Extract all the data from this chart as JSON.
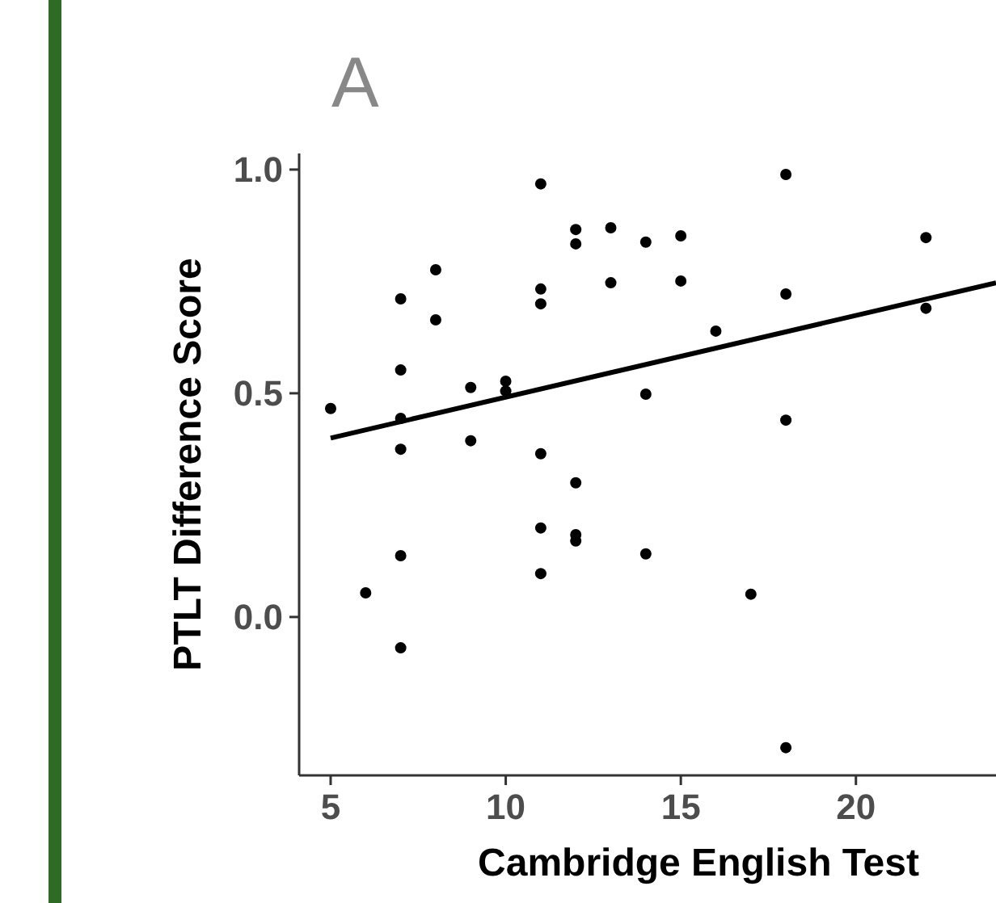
{
  "chart_data": {
    "type": "scatter",
    "title": "A",
    "xlabel": "Cambridge English Test",
    "ylabel": "PTLT Difference Score",
    "xlim": [
      4.1,
      24
    ],
    "xticks": [
      5,
      10,
      15,
      20
    ],
    "ylim": [
      -0.354,
      1.036
    ],
    "yticks": [
      {
        "value": 0,
        "label": "0.0"
      },
      0.5,
      {
        "value": 1,
        "label": "1.0"
      }
    ],
    "grid": false,
    "marker": "circle",
    "series": [
      {
        "color": "#000000",
        "x": [
          5,
          6,
          7,
          7,
          7,
          7,
          7,
          7,
          8,
          8,
          9,
          9,
          10,
          10,
          11,
          11,
          11,
          11,
          11,
          11,
          12,
          12,
          12,
          12,
          12,
          13,
          13,
          14,
          14,
          14,
          15,
          15,
          16,
          17,
          18,
          18,
          18,
          18,
          22,
          22
        ],
        "values": [
          0.466,
          0.054,
          0.711,
          0.552,
          0.444,
          0.375,
          0.137,
          -0.069,
          0.776,
          0.664,
          0.513,
          0.394,
          0.527,
          0.505,
          0.968,
          0.733,
          0.7,
          0.365,
          0.199,
          0.097,
          0.866,
          0.834,
          0.3,
          0.184,
          0.17,
          0.87,
          0.747,
          0.838,
          0.498,
          0.141,
          0.852,
          0.751,
          0.639,
          0.051,
          0.989,
          0.722,
          0.44,
          -0.292,
          0.848,
          0.69
        ]
      },
      {
        "type": "line",
        "color": "#000000",
        "line_style": "solid",
        "marker": "none",
        "x": [
          5,
          24
        ],
        "values": [
          0.4,
          0.747
        ]
      }
    ]
  }
}
